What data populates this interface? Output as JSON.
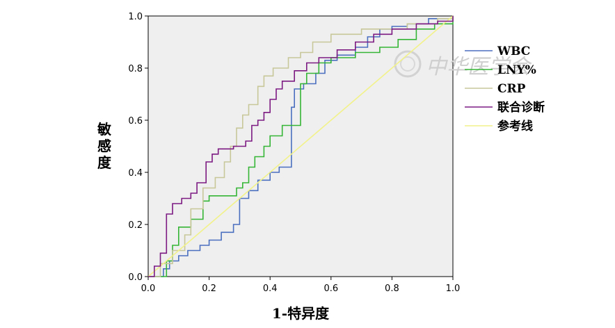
{
  "chart_data": {
    "type": "line",
    "title": "",
    "xlabel": "1-特异度",
    "ylabel": "敏感度",
    "xlim": [
      0,
      1
    ],
    "ylim": [
      0,
      1
    ],
    "xticks": [
      "0.0",
      "0.2",
      "0.4",
      "0.6",
      "0.8",
      "1.0"
    ],
    "yticks": [
      "0.0",
      "0.2",
      "0.4",
      "0.6",
      "0.8",
      "1.0"
    ],
    "grid": false,
    "legend_position": "right",
    "watermark": "中华医学会",
    "series": [
      {
        "name": "WBC",
        "color": "#4a6fbf",
        "points": [
          [
            0,
            0
          ],
          [
            0.05,
            0
          ],
          [
            0.05,
            0.03
          ],
          [
            0.07,
            0.03
          ],
          [
            0.07,
            0.06
          ],
          [
            0.1,
            0.06
          ],
          [
            0.1,
            0.08
          ],
          [
            0.13,
            0.08
          ],
          [
            0.13,
            0.1
          ],
          [
            0.17,
            0.1
          ],
          [
            0.17,
            0.12
          ],
          [
            0.2,
            0.12
          ],
          [
            0.2,
            0.14
          ],
          [
            0.24,
            0.14
          ],
          [
            0.24,
            0.17
          ],
          [
            0.28,
            0.17
          ],
          [
            0.28,
            0.2
          ],
          [
            0.3,
            0.2
          ],
          [
            0.3,
            0.3
          ],
          [
            0.33,
            0.3
          ],
          [
            0.33,
            0.33
          ],
          [
            0.36,
            0.33
          ],
          [
            0.36,
            0.37
          ],
          [
            0.4,
            0.37
          ],
          [
            0.4,
            0.4
          ],
          [
            0.43,
            0.4
          ],
          [
            0.43,
            0.42
          ],
          [
            0.47,
            0.42
          ],
          [
            0.47,
            0.65
          ],
          [
            0.48,
            0.65
          ],
          [
            0.48,
            0.72
          ],
          [
            0.51,
            0.72
          ],
          [
            0.51,
            0.74
          ],
          [
            0.55,
            0.74
          ],
          [
            0.55,
            0.78
          ],
          [
            0.58,
            0.78
          ],
          [
            0.58,
            0.83
          ],
          [
            0.62,
            0.83
          ],
          [
            0.62,
            0.85
          ],
          [
            0.68,
            0.85
          ],
          [
            0.68,
            0.88
          ],
          [
            0.72,
            0.88
          ],
          [
            0.72,
            0.92
          ],
          [
            0.76,
            0.92
          ],
          [
            0.76,
            0.95
          ],
          [
            0.8,
            0.95
          ],
          [
            0.8,
            0.96
          ],
          [
            0.85,
            0.96
          ],
          [
            0.85,
            0.97
          ],
          [
            0.92,
            0.97
          ],
          [
            0.92,
            0.99
          ],
          [
            1,
            0.99
          ],
          [
            1,
            1
          ]
        ]
      },
      {
        "name": "LNY%",
        "color": "#35b535",
        "points": [
          [
            0,
            0
          ],
          [
            0.06,
            0
          ],
          [
            0.06,
            0.06
          ],
          [
            0.08,
            0.06
          ],
          [
            0.08,
            0.12
          ],
          [
            0.1,
            0.12
          ],
          [
            0.1,
            0.19
          ],
          [
            0.14,
            0.19
          ],
          [
            0.14,
            0.22
          ],
          [
            0.18,
            0.22
          ],
          [
            0.18,
            0.29
          ],
          [
            0.2,
            0.29
          ],
          [
            0.2,
            0.31
          ],
          [
            0.29,
            0.31
          ],
          [
            0.29,
            0.34
          ],
          [
            0.31,
            0.34
          ],
          [
            0.31,
            0.36
          ],
          [
            0.33,
            0.36
          ],
          [
            0.33,
            0.42
          ],
          [
            0.35,
            0.42
          ],
          [
            0.35,
            0.46
          ],
          [
            0.38,
            0.46
          ],
          [
            0.38,
            0.5
          ],
          [
            0.4,
            0.5
          ],
          [
            0.4,
            0.54
          ],
          [
            0.44,
            0.54
          ],
          [
            0.44,
            0.58
          ],
          [
            0.5,
            0.58
          ],
          [
            0.5,
            0.74
          ],
          [
            0.52,
            0.74
          ],
          [
            0.52,
            0.78
          ],
          [
            0.56,
            0.78
          ],
          [
            0.56,
            0.82
          ],
          [
            0.6,
            0.82
          ],
          [
            0.6,
            0.84
          ],
          [
            0.68,
            0.84
          ],
          [
            0.68,
            0.86
          ],
          [
            0.76,
            0.86
          ],
          [
            0.76,
            0.88
          ],
          [
            0.82,
            0.88
          ],
          [
            0.82,
            0.91
          ],
          [
            0.88,
            0.91
          ],
          [
            0.88,
            0.95
          ],
          [
            0.94,
            0.95
          ],
          [
            0.94,
            0.97
          ],
          [
            1,
            0.97
          ],
          [
            1,
            1
          ]
        ]
      },
      {
        "name": "CRP",
        "color": "#c7c79a",
        "points": [
          [
            0,
            0
          ],
          [
            0.04,
            0
          ],
          [
            0.04,
            0.05
          ],
          [
            0.08,
            0.05
          ],
          [
            0.08,
            0.1
          ],
          [
            0.12,
            0.1
          ],
          [
            0.12,
            0.16
          ],
          [
            0.14,
            0.16
          ],
          [
            0.14,
            0.26
          ],
          [
            0.18,
            0.26
          ],
          [
            0.18,
            0.34
          ],
          [
            0.22,
            0.34
          ],
          [
            0.22,
            0.38
          ],
          [
            0.25,
            0.38
          ],
          [
            0.25,
            0.44
          ],
          [
            0.27,
            0.44
          ],
          [
            0.27,
            0.5
          ],
          [
            0.29,
            0.5
          ],
          [
            0.29,
            0.57
          ],
          [
            0.31,
            0.57
          ],
          [
            0.31,
            0.62
          ],
          [
            0.33,
            0.62
          ],
          [
            0.33,
            0.66
          ],
          [
            0.36,
            0.66
          ],
          [
            0.36,
            0.73
          ],
          [
            0.38,
            0.73
          ],
          [
            0.38,
            0.77
          ],
          [
            0.41,
            0.77
          ],
          [
            0.41,
            0.8
          ],
          [
            0.46,
            0.8
          ],
          [
            0.46,
            0.84
          ],
          [
            0.5,
            0.84
          ],
          [
            0.5,
            0.86
          ],
          [
            0.54,
            0.86
          ],
          [
            0.54,
            0.9
          ],
          [
            0.6,
            0.9
          ],
          [
            0.6,
            0.93
          ],
          [
            0.7,
            0.93
          ],
          [
            0.7,
            0.95
          ],
          [
            0.85,
            0.95
          ],
          [
            0.85,
            0.97
          ],
          [
            0.95,
            0.97
          ],
          [
            0.95,
            0.99
          ],
          [
            1,
            0.99
          ],
          [
            1,
            1
          ]
        ]
      },
      {
        "name": "联合诊断",
        "color": "#7c1a82",
        "points": [
          [
            0,
            0
          ],
          [
            0.02,
            0
          ],
          [
            0.02,
            0.04
          ],
          [
            0.04,
            0.04
          ],
          [
            0.04,
            0.09
          ],
          [
            0.06,
            0.09
          ],
          [
            0.06,
            0.24
          ],
          [
            0.08,
            0.24
          ],
          [
            0.08,
            0.28
          ],
          [
            0.11,
            0.28
          ],
          [
            0.11,
            0.3
          ],
          [
            0.14,
            0.3
          ],
          [
            0.14,
            0.32
          ],
          [
            0.16,
            0.32
          ],
          [
            0.16,
            0.36
          ],
          [
            0.19,
            0.36
          ],
          [
            0.19,
            0.44
          ],
          [
            0.21,
            0.44
          ],
          [
            0.21,
            0.47
          ],
          [
            0.23,
            0.47
          ],
          [
            0.23,
            0.49
          ],
          [
            0.28,
            0.49
          ],
          [
            0.28,
            0.5
          ],
          [
            0.32,
            0.5
          ],
          [
            0.32,
            0.52
          ],
          [
            0.34,
            0.52
          ],
          [
            0.34,
            0.58
          ],
          [
            0.36,
            0.58
          ],
          [
            0.36,
            0.6
          ],
          [
            0.38,
            0.6
          ],
          [
            0.38,
            0.63
          ],
          [
            0.4,
            0.63
          ],
          [
            0.4,
            0.68
          ],
          [
            0.42,
            0.68
          ],
          [
            0.42,
            0.72
          ],
          [
            0.44,
            0.72
          ],
          [
            0.44,
            0.75
          ],
          [
            0.48,
            0.75
          ],
          [
            0.48,
            0.79
          ],
          [
            0.52,
            0.79
          ],
          [
            0.52,
            0.82
          ],
          [
            0.56,
            0.82
          ],
          [
            0.56,
            0.84
          ],
          [
            0.62,
            0.84
          ],
          [
            0.62,
            0.87
          ],
          [
            0.68,
            0.87
          ],
          [
            0.68,
            0.9
          ],
          [
            0.74,
            0.9
          ],
          [
            0.74,
            0.93
          ],
          [
            0.8,
            0.93
          ],
          [
            0.8,
            0.95
          ],
          [
            0.88,
            0.95
          ],
          [
            0.88,
            0.97
          ],
          [
            0.95,
            0.97
          ],
          [
            0.95,
            0.98
          ],
          [
            1,
            0.98
          ],
          [
            1,
            1
          ]
        ]
      },
      {
        "name": "参考线",
        "color": "#f2f28a",
        "points": [
          [
            0,
            0
          ],
          [
            1,
            1
          ]
        ]
      }
    ]
  }
}
